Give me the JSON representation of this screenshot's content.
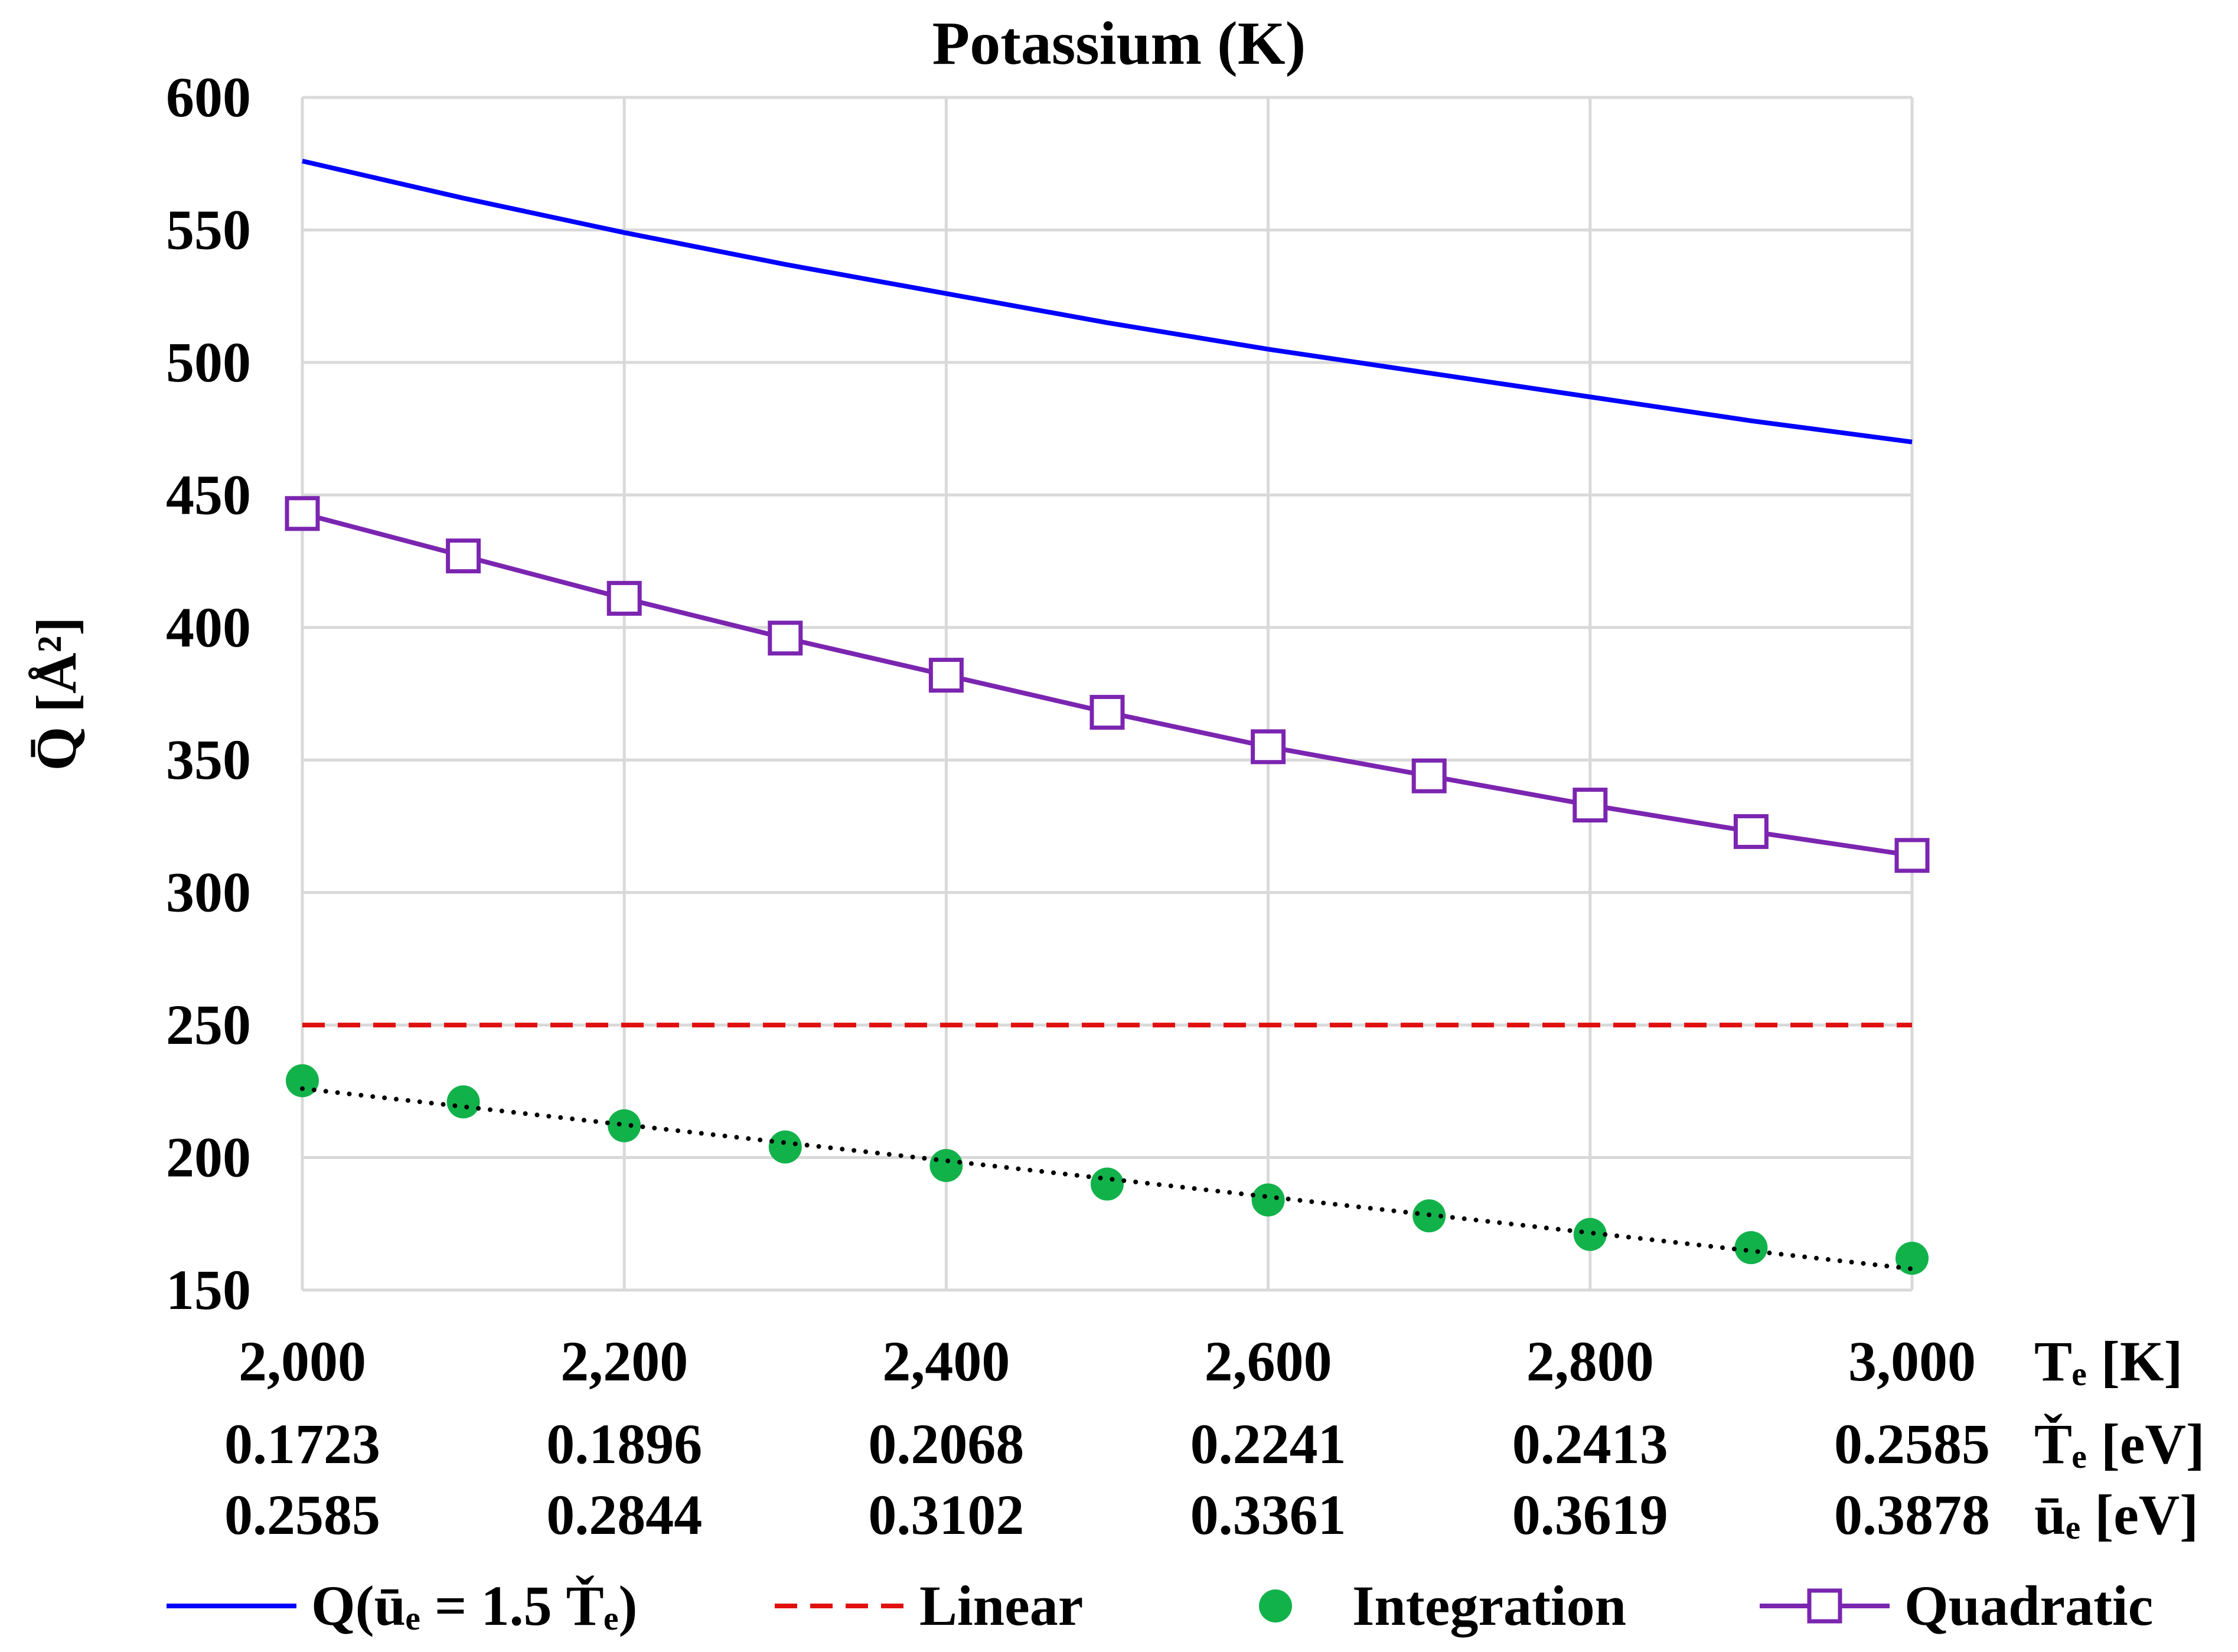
{
  "chart_data": {
    "type": "line",
    "title": "Potassium (K)",
    "ylabel": "Q̄ [Å²]",
    "ylim": [
      150,
      600
    ],
    "yticks": [
      150,
      200,
      250,
      300,
      350,
      400,
      450,
      500,
      550,
      600
    ],
    "grid": true,
    "x": [
      2000,
      2100,
      2200,
      2300,
      2400,
      2500,
      2600,
      2700,
      2800,
      2900,
      3000
    ],
    "xlim": [
      2000,
      3000
    ],
    "axis_rows": [
      {
        "label": "Tₑ [K]",
        "values": [
          "2,000",
          "2,200",
          "2,400",
          "2,600",
          "2,800",
          "3,000"
        ]
      },
      {
        "label": "Ťₑ [eV]",
        "values": [
          "0.1723",
          "0.1896",
          "0.2068",
          "0.2241",
          "0.2413",
          "0.2585"
        ]
      },
      {
        "label": "ūₑ [eV]",
        "values": [
          "0.2585",
          "0.2844",
          "0.3102",
          "0.3361",
          "0.3619",
          "0.3878"
        ]
      }
    ],
    "axis_row_positions": [
      2000,
      2200,
      2400,
      2600,
      2800,
      3000
    ],
    "series": [
      {
        "name": "Q(ūₑ = 1.5 Ťₑ)",
        "style": "solid",
        "marker": "none",
        "color": "#0000FF",
        "values": [
          576,
          562,
          549,
          537,
          526,
          515,
          505,
          496,
          487,
          478,
          470
        ]
      },
      {
        "name": "Linear",
        "style": "dashed",
        "marker": "none",
        "color": "#E01010",
        "values": [
          250,
          250,
          250,
          250,
          250,
          250,
          250,
          250,
          250,
          250,
          250
        ]
      },
      {
        "name": "Integration",
        "style": "none",
        "marker": "circle",
        "color": "#12B24A",
        "values": [
          229,
          221,
          212,
          204,
          197,
          190,
          184,
          178,
          171,
          166,
          162
        ]
      },
      {
        "name": "Quadratic",
        "style": "solid",
        "marker": "square",
        "color": "#7B25B0",
        "values": [
          443,
          427,
          411,
          396,
          382,
          368,
          355,
          344,
          333,
          323,
          314
        ]
      }
    ],
    "trendline": {
      "series": "Integration",
      "style": "dotted",
      "color": "#000000",
      "values": [
        226,
        158
      ]
    },
    "legend_position": "bottom"
  }
}
